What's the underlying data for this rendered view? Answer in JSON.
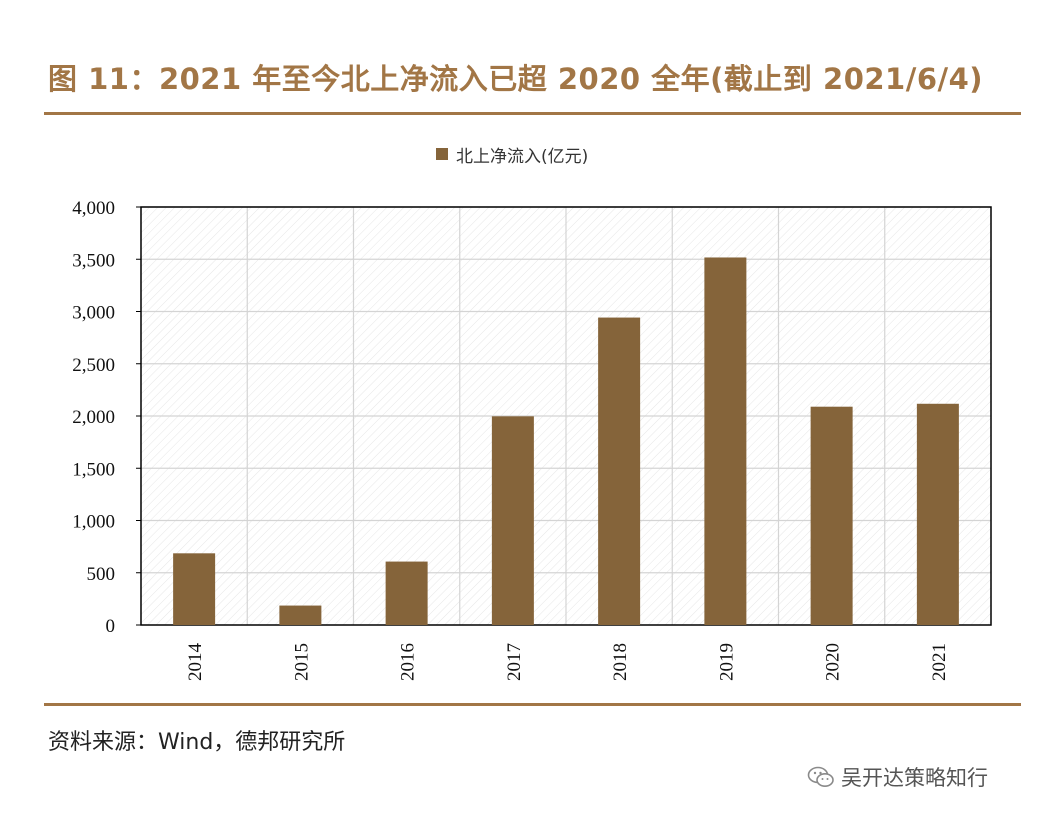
{
  "title": "图 11：2021 年至今北上净流入已超 2020 全年(截止到 2021/6/4)",
  "source": "资料来源：Wind，德邦研究所",
  "watermark": {
    "text": "吴开达策略知行",
    "icon": "wechat-icon"
  },
  "colors": {
    "title": "#a27646",
    "bar": "#85643a",
    "rule": "#a27646"
  },
  "chart_data": {
    "type": "bar",
    "categories": [
      "2014",
      "2015",
      "2016",
      "2017",
      "2018",
      "2019",
      "2020",
      "2021"
    ],
    "series": [
      {
        "name": "北上净流入(亿元)",
        "values": [
          686,
          186,
          607,
          1997,
          2942,
          3517,
          2089,
          2117
        ]
      }
    ],
    "ylim": [
      0,
      4000
    ],
    "yticks": [
      0,
      500,
      1000,
      1500,
      2000,
      2500,
      3000,
      3500,
      4000
    ],
    "ytick_labels": [
      "0",
      "500",
      "1,000",
      "1,500",
      "2,000",
      "2,500",
      "3,000",
      "3,500",
      "4,000"
    ],
    "xlabel": "",
    "ylabel": "",
    "grid": true,
    "legend": "top-center",
    "x_tick_rotation": "vertical"
  }
}
